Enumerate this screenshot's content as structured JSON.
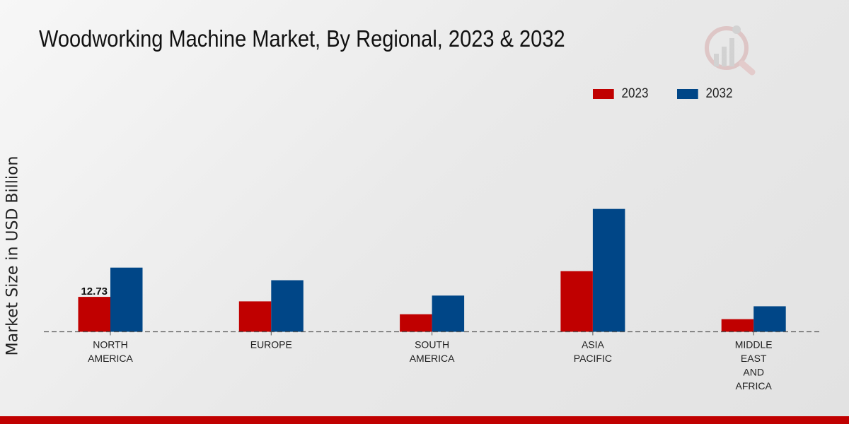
{
  "chart_data": {
    "type": "bar",
    "title": "Woodworking Machine Market, By Regional, 2023 & 2032",
    "xlabel": "",
    "ylabel": "Market Size in USD Billion",
    "categories": [
      [
        "NORTH",
        "AMERICA"
      ],
      [
        "EUROPE"
      ],
      [
        "SOUTH",
        "AMERICA"
      ],
      [
        "ASIA",
        "PACIFIC"
      ],
      [
        "MIDDLE",
        "EAST",
        "AND",
        "AFRICA"
      ]
    ],
    "series": [
      {
        "name": "2023",
        "color": "#c00000",
        "values": [
          12.73,
          11.1,
          6.4,
          22.1,
          4.6
        ]
      },
      {
        "name": "2032",
        "color": "#004687",
        "values": [
          23.4,
          18.8,
          13.2,
          44.8,
          9.3
        ]
      }
    ],
    "data_labels": [
      {
        "series": 0,
        "index": 0,
        "text": "12.73"
      }
    ],
    "ylim": [
      0,
      55
    ],
    "grid": false,
    "legend_position": "top-right"
  }
}
